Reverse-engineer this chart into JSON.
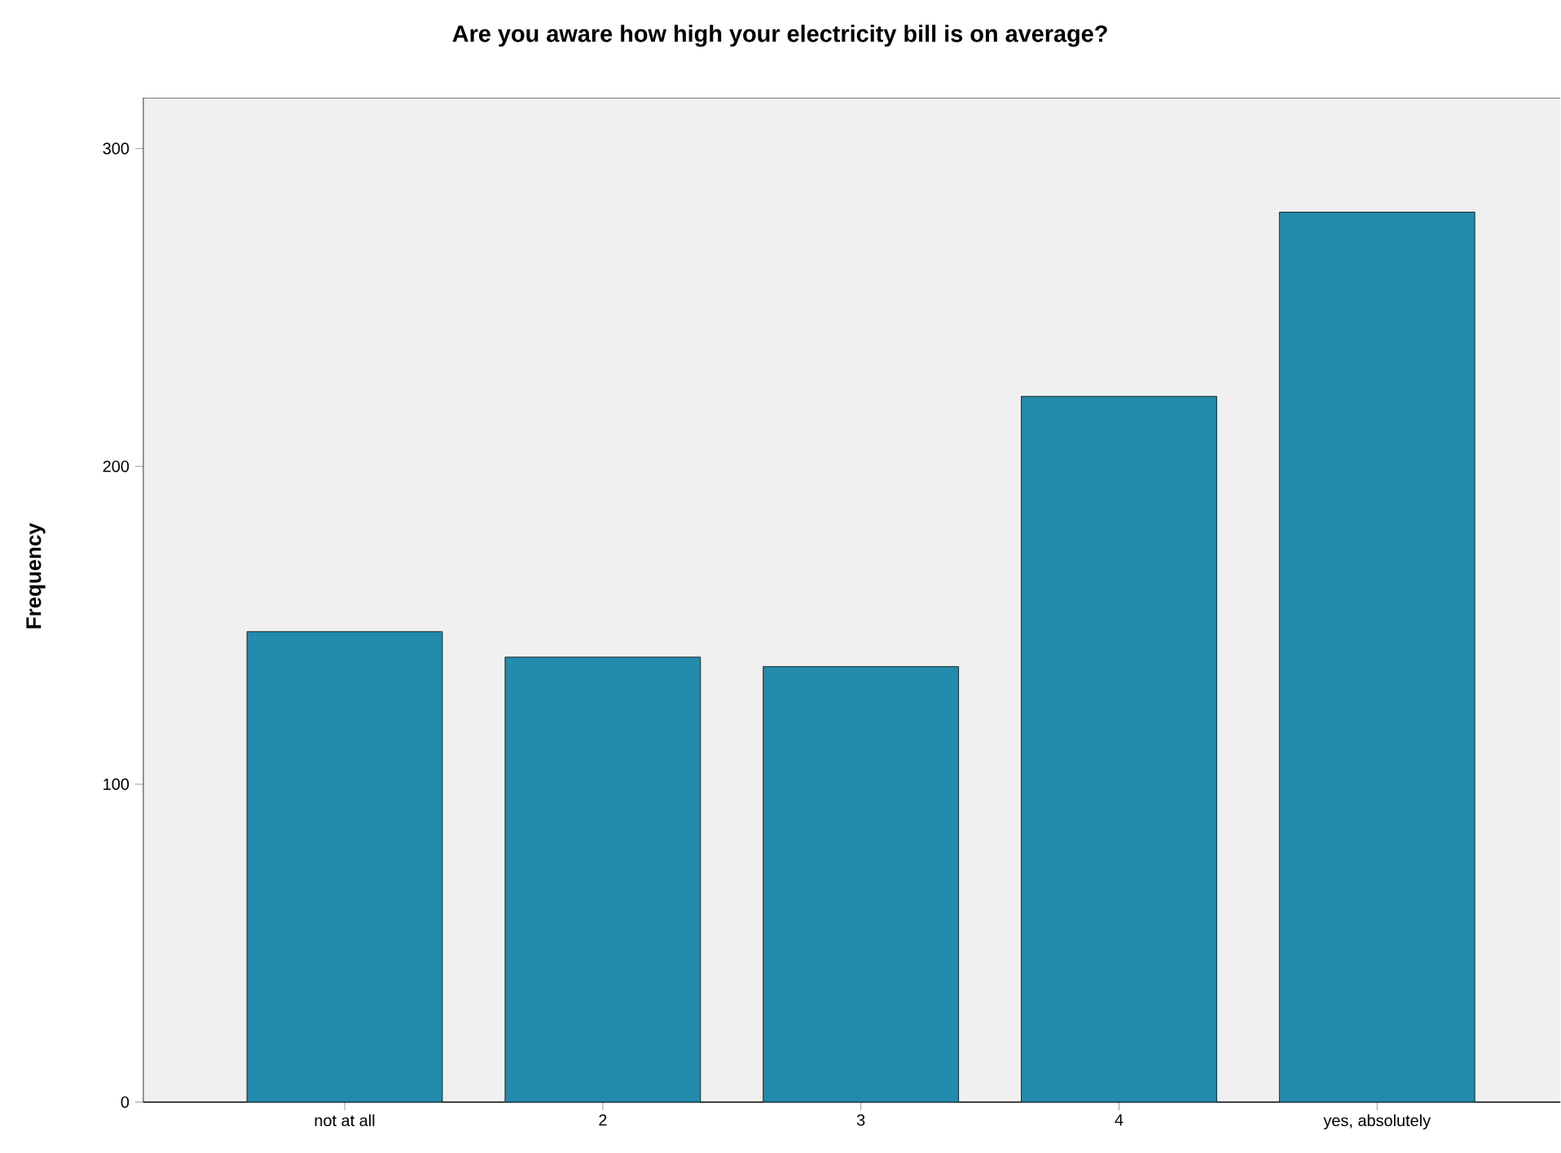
{
  "chart_data": {
    "type": "bar",
    "title": "Are you aware how high your electricity bill is on average?",
    "ylabel": "Frequency",
    "categories": [
      "not at all",
      "2",
      "3",
      "4",
      "yes, absolutely"
    ],
    "values": [
      148,
      140,
      137,
      222,
      280
    ],
    "color": "#238bac",
    "ylim": [
      0,
      316
    ],
    "yticks": [
      0,
      100,
      200,
      300
    ],
    "grid": false
  }
}
